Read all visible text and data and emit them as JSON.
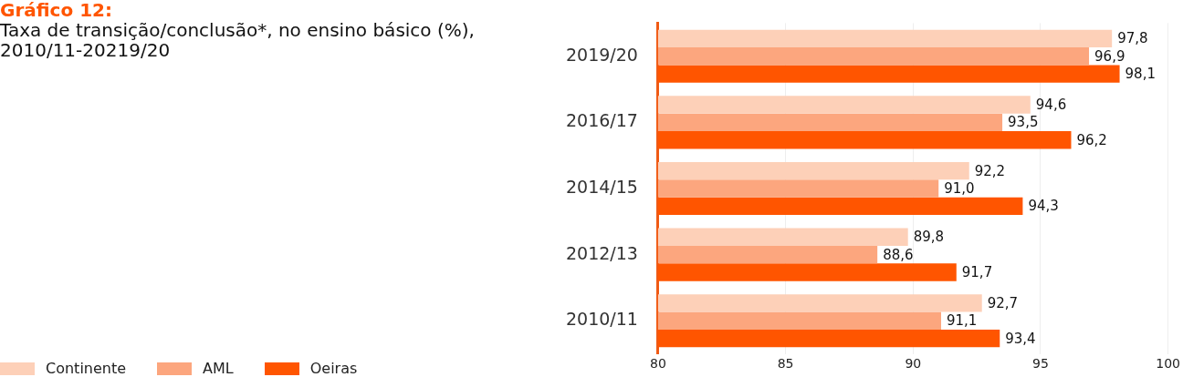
{
  "chart_data": {
    "type": "bar",
    "orientation": "horizontal",
    "title": "Gráfico 12:",
    "subtitle": "Taxa de transição/conclusão*, no ensino básico (%), 2010/11-20219/20",
    "categories": [
      "2019/20",
      "2016/17",
      "2014/15",
      "2012/13",
      "2010/11"
    ],
    "series": [
      {
        "name": "Continente",
        "color": "#fdd0b8",
        "values": [
          97.8,
          94.6,
          92.2,
          89.8,
          92.7
        ],
        "value_labels": [
          "97,8",
          "94,6",
          "92,2",
          "89,8",
          "92,7"
        ]
      },
      {
        "name": "AML",
        "color": "#fca67e",
        "values": [
          96.9,
          93.5,
          91.0,
          88.6,
          91.1
        ],
        "value_labels": [
          "96,9",
          "93,5",
          "91,0",
          "88,6",
          "91,1"
        ]
      },
      {
        "name": "Oeiras",
        "color": "#ff5500",
        "values": [
          98.1,
          96.2,
          94.3,
          91.7,
          93.4
        ],
        "value_labels": [
          "98,1",
          "96,2",
          "94,3",
          "91,7",
          "93,4"
        ]
      }
    ],
    "xlim": [
      80,
      100
    ],
    "xticks": [
      80,
      85,
      90,
      95,
      100
    ],
    "grid": "x",
    "legend": "bottom left"
  }
}
